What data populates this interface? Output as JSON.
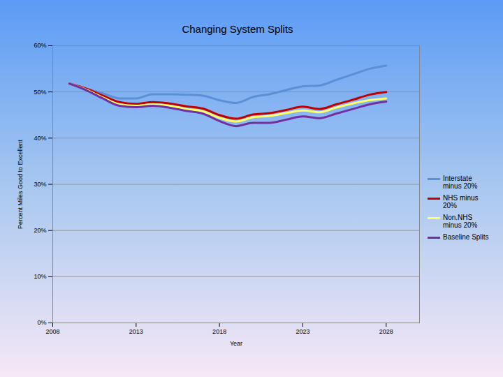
{
  "chart_data": {
    "type": "line",
    "title": "Changing System Splits",
    "x_label": "Year",
    "y_label": "Percent Miles Good to Excellent",
    "x": [
      2009,
      2010,
      2011,
      2012,
      2013,
      2014,
      2015,
      2016,
      2017,
      2018,
      2019,
      2020,
      2021,
      2022,
      2023,
      2024,
      2025,
      2026,
      2027,
      2028
    ],
    "series": [
      {
        "name": "Interstate minus 20%",
        "color": "#5b8fd6",
        "values": [
          51.8,
          50.7,
          49.7,
          48.6,
          48.6,
          49.5,
          49.5,
          49.4,
          49.2,
          48.2,
          47.6,
          48.9,
          49.5,
          50.4,
          51.2,
          51.4,
          52.6,
          53.8,
          55.0,
          55.7
        ]
      },
      {
        "name": "NHS minus 20%",
        "color": "#c00000",
        "values": [
          51.8,
          50.7,
          49.2,
          47.8,
          47.4,
          47.8,
          47.5,
          46.9,
          46.4,
          45.0,
          44.2,
          45.1,
          45.4,
          46.1,
          46.8,
          46.3,
          47.3,
          48.3,
          49.4,
          50.0
        ]
      },
      {
        "name": "Non.NHS minus 20%",
        "color": "#ffff66",
        "values": [
          51.8,
          50.5,
          48.8,
          47.3,
          47.0,
          47.3,
          47.0,
          46.3,
          45.8,
          44.4,
          43.6,
          44.5,
          44.8,
          45.4,
          46.0,
          45.6,
          46.6,
          47.5,
          48.2,
          48.6
        ]
      },
      {
        "name": "Baseline Splits",
        "color": "#7030a0",
        "values": [
          51.8,
          50.4,
          48.6,
          47.0,
          46.7,
          47.0,
          46.6,
          45.9,
          45.3,
          43.7,
          42.6,
          43.3,
          43.3,
          44.0,
          44.7,
          44.3,
          45.3,
          46.3,
          47.3,
          47.9
        ]
      }
    ],
    "xlim": [
      2008,
      2030
    ],
    "xticks": [
      2008,
      2013,
      2018,
      2023,
      2028
    ],
    "ylim": [
      0,
      60
    ],
    "yticks": [
      {
        "value": 0,
        "label": "0%"
      },
      {
        "value": 10,
        "label": "10%"
      },
      {
        "value": 20,
        "label": "20%"
      },
      {
        "value": 30,
        "label": "30%"
      },
      {
        "value": 40,
        "label": "40%"
      },
      {
        "value": 50,
        "label": "50%"
      },
      {
        "value": 60,
        "label": "60%"
      }
    ],
    "grid": true,
    "legend": "right"
  }
}
